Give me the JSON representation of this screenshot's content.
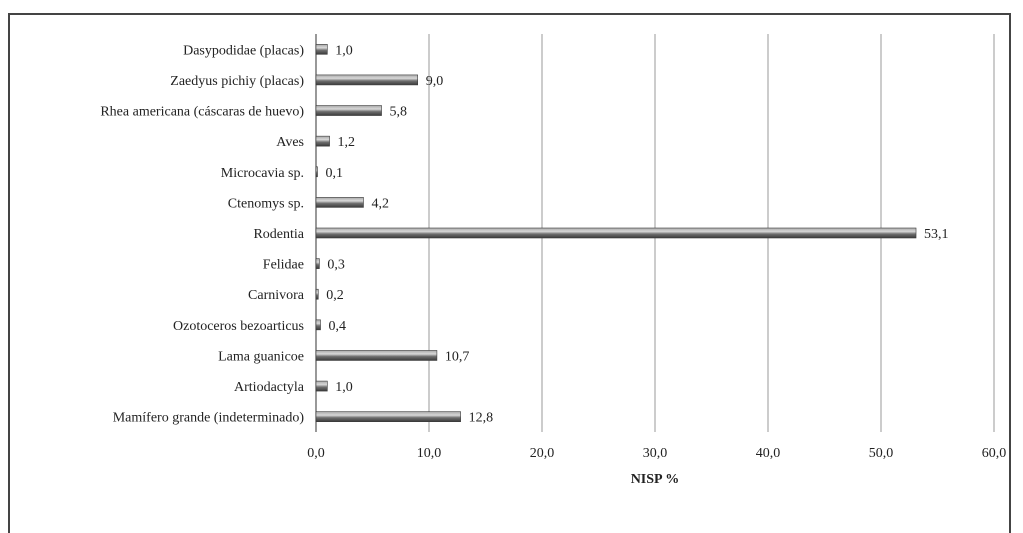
{
  "chart_data": {
    "type": "bar",
    "orientation": "horizontal",
    "categories": [
      "Dasypodidae (placas)",
      "Zaedyus pichiy (placas)",
      "Rhea americana (cáscaras de huevo)",
      "Aves",
      "Microcavia sp.",
      "Ctenomys sp.",
      "Rodentia",
      "Felidae",
      "Carnivora",
      "Ozotoceros bezoarticus",
      "Lama guanicoe",
      "Artiodactyla",
      "Mamífero grande (indeterminado)"
    ],
    "values": [
      1.0,
      9.0,
      5.8,
      1.2,
      0.1,
      4.2,
      53.1,
      0.3,
      0.2,
      0.4,
      10.7,
      1.0,
      12.8
    ],
    "data_labels": [
      "1,0",
      "9,0",
      "5,8",
      "1,2",
      "0,1",
      "4,2",
      "53,1",
      "0,3",
      "0,2",
      "0,4",
      "10,7",
      "1,0",
      "12,8"
    ],
    "x_ticks": [
      0,
      10,
      20,
      30,
      40,
      50,
      60
    ],
    "x_tick_labels": [
      "0,0",
      "10,0",
      "20,0",
      "30,0",
      "40,0",
      "50,0",
      "60,0"
    ],
    "xlim": [
      0,
      60
    ],
    "xlabel": "NISP %",
    "ylabel": "",
    "title": "",
    "grid": "vertical",
    "legend": "none",
    "bar_color": "#6f6f6f",
    "bar_highlight": "#d8d8d8",
    "gridline_color": "#9a9a9a"
  }
}
